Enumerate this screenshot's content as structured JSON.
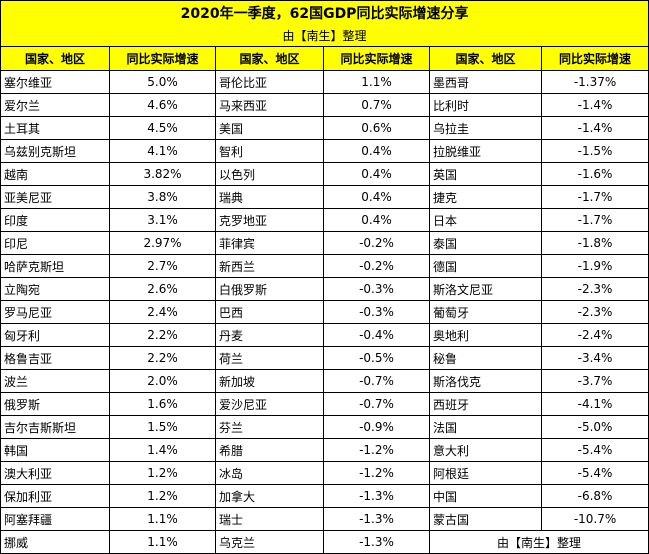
{
  "title": "2020年一季度，62国GDP同比实际增速分享",
  "subtitle": "由【南生】整理",
  "headers": [
    "国家、地区",
    "同比实际增速",
    "国家、地区",
    "同比实际增速",
    "国家、地区",
    "同比实际增速"
  ],
  "rows": [
    [
      "塞尔维亚",
      "5.0%",
      "哥伦比亚",
      "1.1%",
      "墨西哥",
      "-1.37%"
    ],
    [
      "爱尔兰",
      "4.6%",
      "马来西亚",
      "0.7%",
      "比利时",
      "-1.4%"
    ],
    [
      "土耳其",
      "4.5%",
      "美国",
      "0.6%",
      "乌拉圭",
      "-1.4%"
    ],
    [
      "乌兹别克斯坦",
      "4.1%",
      "智利",
      "0.4%",
      "拉脱维亚",
      "-1.5%"
    ],
    [
      "越南",
      "3.82%",
      "以色列",
      "0.4%",
      "英国",
      "-1.6%"
    ],
    [
      "亚美尼亚",
      "3.8%",
      "瑞典",
      "0.4%",
      "捷克",
      "-1.7%"
    ],
    [
      "印度",
      "3.1%",
      "克罗地亚",
      "0.4%",
      "日本",
      "-1.7%"
    ],
    [
      "印尼",
      "2.97%",
      "菲律宾",
      "-0.2%",
      "泰国",
      "-1.8%"
    ],
    [
      "哈萨克斯坦",
      "2.7%",
      "新西兰",
      "-0.2%",
      "德国",
      "-1.9%"
    ],
    [
      "立陶宛",
      "2.6%",
      "白俄罗斯",
      "-0.3%",
      "斯洛文尼亚",
      "-2.3%"
    ],
    [
      "罗马尼亚",
      "2.4%",
      "巴西",
      "-0.3%",
      "葡萄牙",
      "-2.3%"
    ],
    [
      "匈牙利",
      "2.2%",
      "丹麦",
      "-0.4%",
      "奥地利",
      "-2.4%"
    ],
    [
      "格鲁吉亚",
      "2.2%",
      "荷兰",
      "-0.5%",
      "秘鲁",
      "-3.4%"
    ],
    [
      "波兰",
      "2.0%",
      "新加坡",
      "-0.7%",
      "斯洛伐克",
      "-3.7%"
    ],
    [
      "俄罗斯",
      "1.6%",
      "爱沙尼亚",
      "-0.7%",
      "西班牙",
      "-4.1%"
    ],
    [
      "吉尔吉斯斯坦",
      "1.5%",
      "芬兰",
      "-0.9%",
      "法国",
      "-5.0%"
    ],
    [
      "韩国",
      "1.4%",
      "希腊",
      "-1.2%",
      "意大利",
      "-5.4%"
    ],
    [
      "澳大利亚",
      "1.2%",
      "冰岛",
      "-1.2%",
      "阿根廷",
      "-5.4%"
    ],
    [
      "保加利亚",
      "1.2%",
      "加拿大",
      "-1.3%",
      "中国",
      "-6.8%"
    ],
    [
      "阿塞拜疆",
      "1.1%",
      "瑞士",
      "-1.3%",
      "蒙古国",
      "-10.7%"
    ]
  ],
  "last_row": [
    "挪威",
    "1.1%",
    "乌克兰",
    "-1.3%"
  ],
  "footer_note": "由【南生】整理"
}
